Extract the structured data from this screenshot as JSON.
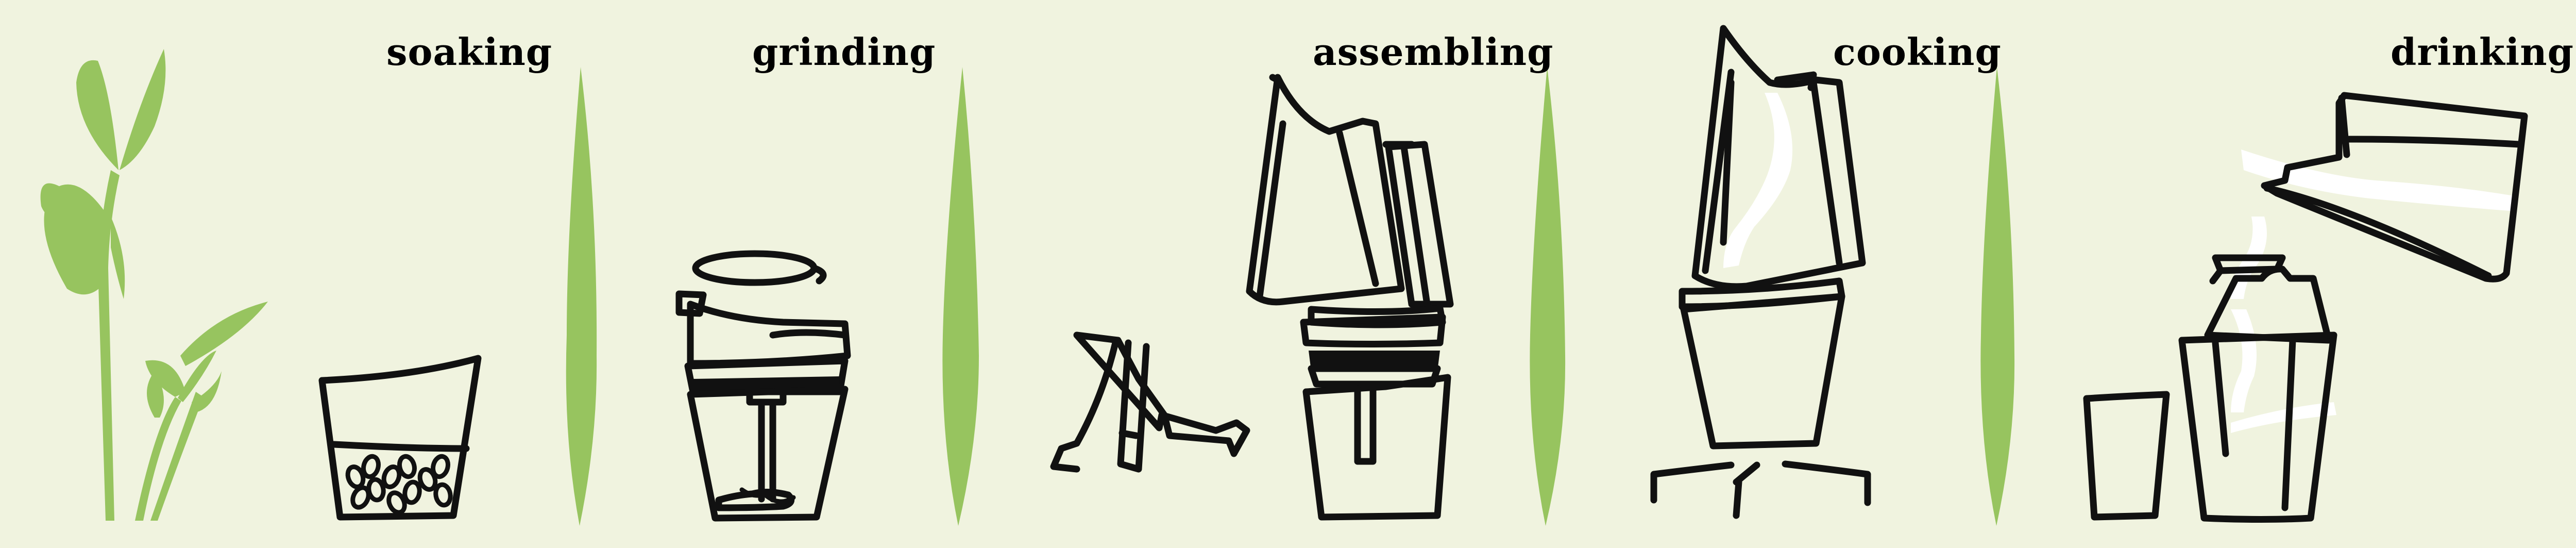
{
  "steps": [
    {
      "label": "soaking"
    },
    {
      "label": "grinding"
    },
    {
      "label": "assembling"
    },
    {
      "label": "cooking"
    },
    {
      "label": "drinking"
    }
  ],
  "colors": {
    "background": "#f0f3df",
    "leaf_green": "#97c45f",
    "ink": "#111111",
    "steam": "#ffffff"
  }
}
